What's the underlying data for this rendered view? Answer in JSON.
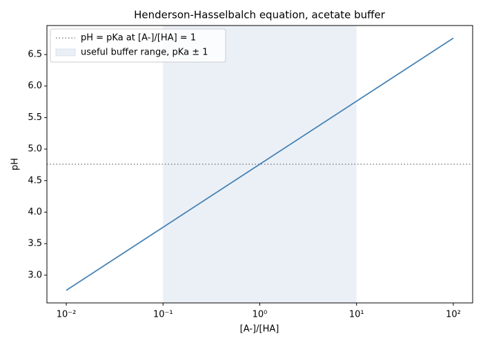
{
  "chart_data": {
    "type": "line",
    "title": "Henderson-Hasselbalch equation, acetate buffer",
    "xlabel": "[A-]/[HA]",
    "ylabel": "pH",
    "x": [
      0.01,
      0.1,
      1,
      10,
      100
    ],
    "values": [
      2.76,
      3.76,
      4.76,
      5.76,
      6.76
    ],
    "color": "#4682b4",
    "xscale": "log",
    "xlim": [
      0.00631,
      158.5
    ],
    "xticks": [
      {
        "value": 0.01,
        "label": "10⁻²"
      },
      {
        "value": 0.1,
        "label": "10⁻¹"
      },
      {
        "value": 1,
        "label": "10⁰"
      },
      {
        "value": 10,
        "label": "10¹"
      },
      {
        "value": 100,
        "label": "10²"
      }
    ],
    "ylim": [
      2.56,
      6.96
    ],
    "yticks": [
      {
        "value": 3,
        "label": "3.0"
      },
      3.5,
      {
        "value": 4,
        "label": "4.0"
      },
      4.5,
      {
        "value": 5,
        "label": "5.0"
      },
      5.5,
      {
        "value": 6,
        "label": "6.0"
      },
      6.5
    ],
    "hline": {
      "value": 4.76,
      "label": "pH = pKa at [A-]/[HA] = 1",
      "color": "#808080"
    },
    "span": {
      "range": [
        0.1,
        10
      ],
      "label": "useful buffer range, pKa ± 1",
      "color": "#b0c4de"
    },
    "legend": "upper left",
    "grid": false
  }
}
